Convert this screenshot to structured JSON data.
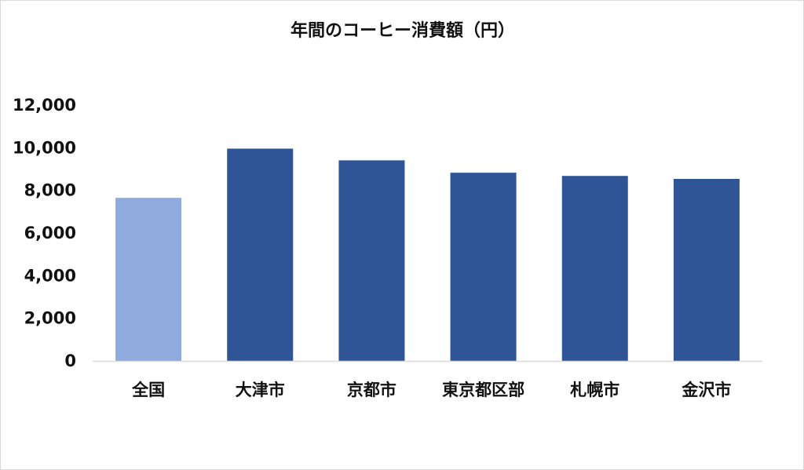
{
  "chart_data": {
    "type": "bar",
    "title": "年間のコーヒー消費額（円）",
    "categories": [
      "全国",
      "大津市",
      "京都市",
      "東京都区部",
      "札幌市",
      "金沢市"
    ],
    "values": [
      7650,
      9960,
      9410,
      8830,
      8680,
      8540
    ],
    "ylim": [
      0,
      12000
    ],
    "yticks": [
      0,
      2000,
      4000,
      6000,
      8000,
      10000,
      12000
    ],
    "ytick_labels": [
      "0",
      "2,000",
      "4,000",
      "6,000",
      "8,000",
      "10,000",
      "12,000"
    ],
    "xlabel": "",
    "ylabel": "",
    "grid": false,
    "legend": "none",
    "colors": {
      "highlight": "#8faadc",
      "bar": "#2f5597",
      "axis": "#d9d9d9"
    },
    "highlight_index": 0
  }
}
